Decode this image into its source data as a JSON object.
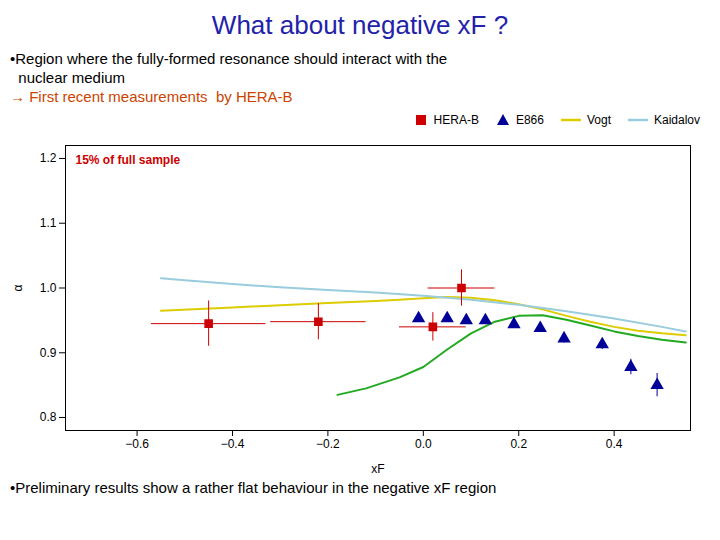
{
  "chart_data": {
    "type": "line",
    "title": "What about negative xF ?",
    "subtitle": [
      {
        "text": "•Region where the fully-formed resonance should interact with the"
      },
      {
        "text": "  nuclear medium"
      },
      {
        "text": "→ First recent measurements  by HERA-B",
        "color": "#cc4400"
      }
    ],
    "caption": "•Preliminary results show a rather flat behaviour in the negative xF region",
    "x_label": "xF",
    "y_label": "α",
    "xlim": [
      -0.75,
      0.56
    ],
    "xticks": [
      -0.6,
      -0.4,
      -0.2,
      {
        "value": 0,
        "label": "0.0"
      },
      0.2,
      0.4
    ],
    "ylim": [
      0.78,
      1.22
    ],
    "yticks": [
      0.8,
      0.9,
      {
        "value": 1,
        "label": "1.0"
      },
      1.1,
      1.2
    ],
    "grid": false,
    "legend": "upper right",
    "annotations": [
      {
        "text": "15% of full sample",
        "color": "#cc0000"
      }
    ],
    "series": [
      {
        "name": "HERA-B",
        "type": "scatter",
        "marker": "square",
        "color": "#cc0000",
        "x": [
          -0.45,
          -0.22,
          0.02,
          0.08
        ],
        "values": [
          0.945,
          0.948,
          0.94,
          1.0
        ],
        "x_err": [
          0.12,
          0.1,
          0.07,
          0.07
        ],
        "y_err": [
          0.035,
          0.028,
          0.022,
          0.028
        ]
      },
      {
        "name": "E866",
        "type": "scatter",
        "marker": "triangle",
        "color": "#000099",
        "x": [
          -0.01,
          0.05,
          0.09,
          0.13,
          0.19,
          0.245,
          0.295,
          0.375,
          0.435,
          0.49
        ],
        "values": [
          0.953,
          0.953,
          0.95,
          0.95,
          0.944,
          0.938,
          0.922,
          0.913,
          0.878,
          0.85
        ],
        "y_err": [
          0.004,
          0.004,
          0.004,
          0.004,
          0.005,
          0.005,
          0.007,
          0.008,
          0.012,
          0.018
        ]
      },
      {
        "name": "Vogt",
        "type": "line",
        "color": "#ddcc00",
        "x": [
          -0.55,
          -0.4,
          -0.2,
          -0.1,
          -0.05,
          0.0,
          0.05,
          0.1,
          0.15,
          0.2,
          0.25,
          0.3,
          0.35,
          0.4,
          0.45,
          0.5,
          0.55
        ],
        "values": [
          0.965,
          0.97,
          0.977,
          0.98,
          0.982,
          0.984,
          0.986,
          0.985,
          0.981,
          0.975,
          0.967,
          0.957,
          0.948,
          0.94,
          0.934,
          0.93,
          0.927
        ]
      },
      {
        "name": "Kaidalov",
        "type": "line",
        "color": "#99ccdd",
        "x": [
          -0.55,
          -0.5,
          -0.4,
          -0.3,
          -0.2,
          -0.1,
          0.0,
          0.1,
          0.2,
          0.3,
          0.4,
          0.5,
          0.55
        ],
        "values": [
          1.015,
          1.012,
          1.006,
          1.001,
          0.997,
          0.993,
          0.988,
          0.982,
          0.974,
          0.964,
          0.953,
          0.94,
          0.933
        ]
      },
      {
        "name": null,
        "type": "line",
        "color": "#22aa22",
        "x": [
          -0.18,
          -0.12,
          -0.05,
          0.0,
          0.05,
          0.1,
          0.15,
          0.2,
          0.25,
          0.3,
          0.35,
          0.4,
          0.45,
          0.5,
          0.55
        ],
        "values": [
          0.835,
          0.845,
          0.862,
          0.878,
          0.905,
          0.93,
          0.948,
          0.957,
          0.958,
          0.951,
          0.942,
          0.933,
          0.926,
          0.92,
          0.916
        ]
      }
    ]
  }
}
